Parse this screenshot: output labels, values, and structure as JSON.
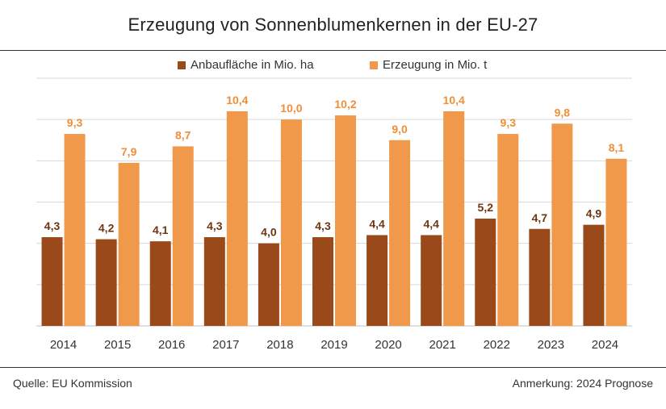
{
  "title": "Erzeugung von Sonnenblumenkernen in der EU-27",
  "colors": {
    "area": "#9a4a1a",
    "production": "#f0994a",
    "grid": "#d9d9d9",
    "axis": "#bfbfbf"
  },
  "chart_data": {
    "type": "bar",
    "categories": [
      "2014",
      "2015",
      "2016",
      "2017",
      "2018",
      "2019",
      "2020",
      "2021",
      "2022",
      "2023",
      "2024"
    ],
    "series": [
      {
        "name": "Anbaufläche in Mio. ha",
        "values": [
          4.3,
          4.2,
          4.1,
          4.3,
          4.0,
          4.3,
          4.4,
          4.4,
          5.2,
          4.7,
          4.9
        ],
        "labels": [
          "4,3",
          "4,2",
          "4,1",
          "4,3",
          "4,0",
          "4,3",
          "4,4",
          "4,4",
          "5,2",
          "4,7",
          "4,9"
        ]
      },
      {
        "name": "Erzeugung in Mio. t",
        "values": [
          9.3,
          7.9,
          8.7,
          10.4,
          10.0,
          10.2,
          9.0,
          10.4,
          9.3,
          9.8,
          8.1
        ],
        "labels": [
          "9,3",
          "7,9",
          "8,7",
          "10,4",
          "10,0",
          "10,2",
          "9,0",
          "10,4",
          "9,3",
          "9,8",
          "8,1"
        ]
      }
    ],
    "ylim": [
      0,
      12
    ],
    "grid": true,
    "legend": "top-center"
  },
  "footer": {
    "source": "Quelle:  EU Kommission",
    "note": "Anmerkung: 2024 Prognose"
  }
}
